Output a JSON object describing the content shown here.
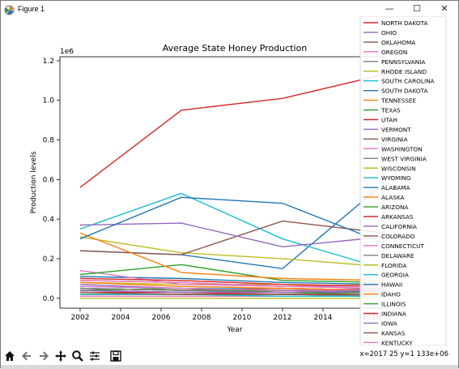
{
  "window": {
    "title": "Figure 1",
    "minimize": "—",
    "maximize": "☐",
    "close": "✕"
  },
  "toolbar": {
    "icons": [
      "home-icon",
      "back-arrow-icon",
      "forward-arrow-icon",
      "pan-icon",
      "zoom-icon",
      "subplots-icon",
      "save-icon"
    ],
    "coordinates": "x=2017 25 y=1 133e+06"
  },
  "chart_data": {
    "type": "line",
    "title": "Average State Honey Production",
    "xlabel": "Year",
    "ylabel": "Production levels",
    "y_offset_label": "1e6",
    "x": [
      2002,
      2007,
      2012,
      2017
    ],
    "xlim": [
      2001,
      2017
    ],
    "ylim": [
      -0.05,
      1.22
    ],
    "x_ticks": [
      "2002",
      "2004",
      "2006",
      "2008",
      "2010",
      "2012",
      "2014"
    ],
    "y_ticks": [
      "0.0",
      "0.2",
      "0.4",
      "0.6",
      "0.8",
      "1.0",
      "1.2"
    ],
    "legend_position": "right, overlapping plot",
    "partially_hidden_tick": "2016",
    "series": [
      {
        "name": "NORTH DAKOTA",
        "color": "#d62728",
        "values": [
          0.56,
          0.95,
          1.01,
          1.13
        ]
      },
      {
        "name": "OHIO",
        "color": "#9467bd",
        "values": [
          0.04,
          0.03,
          0.03,
          0.04
        ]
      },
      {
        "name": "OKLAHOMA",
        "color": "#8c564b",
        "values": [
          0.03,
          0.02,
          0.02,
          0.02
        ]
      },
      {
        "name": "OREGON",
        "color": "#e377c2",
        "values": [
          0.06,
          0.05,
          0.04,
          0.04
        ]
      },
      {
        "name": "PENNSYLVANIA",
        "color": "#7f7f7f",
        "values": [
          0.05,
          0.04,
          0.03,
          0.04
        ]
      },
      {
        "name": "RHODE ISLAND",
        "color": "#bcbd22",
        "values": [
          0.0,
          0.0,
          0.0,
          0.0
        ]
      },
      {
        "name": "SOUTH CAROLINA",
        "color": "#17becf",
        "values": [
          0.02,
          0.02,
          0.01,
          0.01
        ]
      },
      {
        "name": "SOUTH DAKOTA",
        "color": "#1f77b4",
        "values": [
          0.3,
          0.51,
          0.48,
          0.28
        ]
      },
      {
        "name": "TENNESSEE",
        "color": "#ff7f0e",
        "values": [
          0.33,
          0.13,
          0.1,
          0.09
        ]
      },
      {
        "name": "TEXAS",
        "color": "#2ca02c",
        "values": [
          0.12,
          0.17,
          0.09,
          0.08
        ]
      },
      {
        "name": "UTAH",
        "color": "#d62728",
        "values": [
          0.02,
          0.02,
          0.02,
          0.02
        ]
      },
      {
        "name": "VERMONT",
        "color": "#9467bd",
        "values": [
          0.37,
          0.38,
          0.26,
          0.31
        ]
      },
      {
        "name": "VIRGINIA",
        "color": "#8c564b",
        "values": [
          0.24,
          0.22,
          0.39,
          0.33
        ]
      },
      {
        "name": "WASHINGTON",
        "color": "#e377c2",
        "values": [
          0.09,
          0.08,
          0.06,
          0.06
        ]
      },
      {
        "name": "WEST VIRGINIA",
        "color": "#7f7f7f",
        "values": [
          0.02,
          0.02,
          0.02,
          0.01
        ]
      },
      {
        "name": "WISCONSIN",
        "color": "#bcbd22",
        "values": [
          0.31,
          0.23,
          0.2,
          0.16
        ]
      },
      {
        "name": "WYOMING",
        "color": "#17becf",
        "values": [
          0.35,
          0.53,
          0.3,
          0.15
        ]
      },
      {
        "name": "ALABAMA",
        "color": "#1f77b4",
        "values": [
          0.24,
          0.22,
          0.15,
          0.58
        ]
      },
      {
        "name": "ALASKA",
        "color": "#ff7f0e",
        "values": [
          0.08,
          0.06,
          0.05,
          0.04
        ]
      },
      {
        "name": "ARIZONA",
        "color": "#2ca02c",
        "values": [
          0.05,
          0.04,
          0.04,
          0.03
        ]
      },
      {
        "name": "ARKANSAS",
        "color": "#d62728",
        "values": [
          0.1,
          0.09,
          0.07,
          0.06
        ]
      },
      {
        "name": "CALIFORNIA",
        "color": "#9467bd",
        "values": [
          0.07,
          0.05,
          0.04,
          0.05
        ]
      },
      {
        "name": "COLORADO",
        "color": "#8c564b",
        "values": [
          0.05,
          0.04,
          0.05,
          0.04
        ]
      },
      {
        "name": "CONNECTICUT",
        "color": "#e377c2",
        "values": [
          0.14,
          0.07,
          0.06,
          0.05
        ]
      },
      {
        "name": "DELAWARE",
        "color": "#7f7f7f",
        "values": [
          0.02,
          0.02,
          0.02,
          0.02
        ]
      },
      {
        "name": "FLORIDA",
        "color": "#bcbd22",
        "values": [
          0.08,
          0.07,
          0.07,
          0.06
        ]
      },
      {
        "name": "GEORGIA",
        "color": "#17becf",
        "values": [
          0.06,
          0.05,
          0.05,
          0.04
        ]
      },
      {
        "name": "HAWAII",
        "color": "#1f77b4",
        "values": [
          0.11,
          0.1,
          0.08,
          0.07
        ]
      },
      {
        "name": "IDAHO",
        "color": "#ff7f0e",
        "values": [
          0.09,
          0.08,
          0.06,
          0.07
        ]
      },
      {
        "name": "ILLINOIS",
        "color": "#2ca02c",
        "values": [
          0.04,
          0.05,
          0.03,
          0.02
        ]
      },
      {
        "name": "INDIANA",
        "color": "#d62728",
        "values": [
          0.03,
          0.03,
          0.02,
          0.02
        ]
      },
      {
        "name": "IOWA",
        "color": "#9467bd",
        "values": [
          0.04,
          0.03,
          0.03,
          0.03
        ]
      },
      {
        "name": "KANSAS",
        "color": "#8c564b",
        "values": [
          0.05,
          0.04,
          0.04,
          0.03
        ]
      },
      {
        "name": "KENTUCKY",
        "color": "#e377c2",
        "values": [
          0.01,
          0.01,
          0.01,
          0.01
        ]
      }
    ]
  }
}
